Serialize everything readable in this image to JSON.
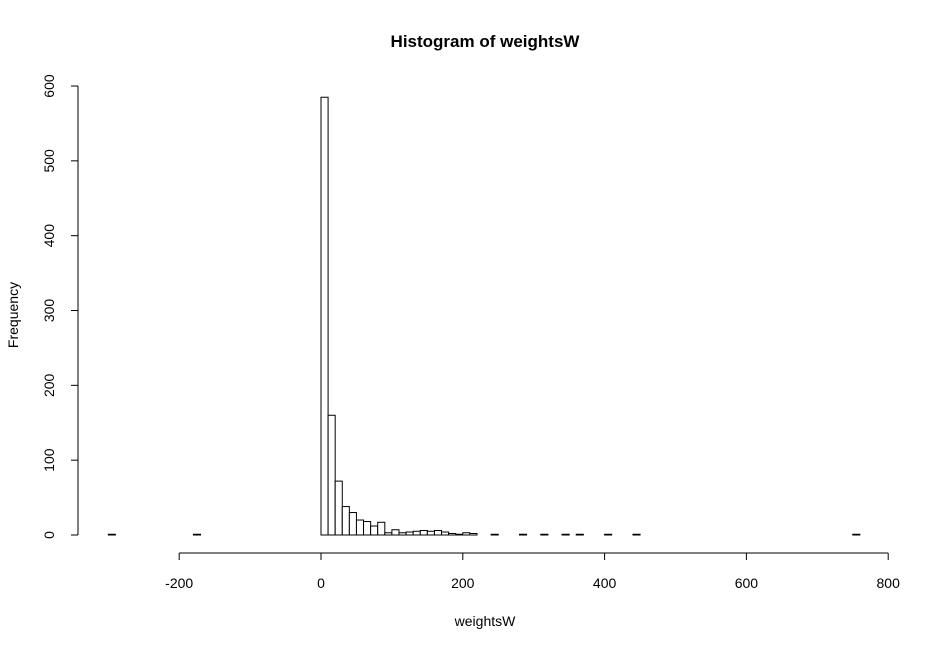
{
  "chart_data": {
    "type": "bar",
    "title": "Histogram of weightsW",
    "xlabel": "weightsW",
    "ylabel": "Frequency",
    "xlim": [
      -300,
      760
    ],
    "ylim": [
      0,
      600
    ],
    "x_ticks": [
      -200,
      0,
      200,
      400,
      600,
      800
    ],
    "y_ticks": [
      0,
      100,
      200,
      300,
      400,
      500,
      600
    ],
    "bin_width": 10,
    "grid": false,
    "bins": [
      {
        "x0": -300,
        "x1": -290,
        "count": 1
      },
      {
        "x0": -180,
        "x1": -170,
        "count": 1
      },
      {
        "x0": 0,
        "x1": 10,
        "count": 585
      },
      {
        "x0": 10,
        "x1": 20,
        "count": 160
      },
      {
        "x0": 20,
        "x1": 30,
        "count": 72
      },
      {
        "x0": 30,
        "x1": 40,
        "count": 38
      },
      {
        "x0": 40,
        "x1": 50,
        "count": 30
      },
      {
        "x0": 50,
        "x1": 60,
        "count": 20
      },
      {
        "x0": 60,
        "x1": 70,
        "count": 18
      },
      {
        "x0": 70,
        "x1": 80,
        "count": 12
      },
      {
        "x0": 80,
        "x1": 90,
        "count": 17
      },
      {
        "x0": 90,
        "x1": 100,
        "count": 3
      },
      {
        "x0": 100,
        "x1": 110,
        "count": 7
      },
      {
        "x0": 110,
        "x1": 120,
        "count": 3
      },
      {
        "x0": 120,
        "x1": 130,
        "count": 4
      },
      {
        "x0": 130,
        "x1": 140,
        "count": 5
      },
      {
        "x0": 140,
        "x1": 150,
        "count": 6
      },
      {
        "x0": 150,
        "x1": 160,
        "count": 5
      },
      {
        "x0": 160,
        "x1": 170,
        "count": 6
      },
      {
        "x0": 170,
        "x1": 180,
        "count": 4
      },
      {
        "x0": 180,
        "x1": 190,
        "count": 2
      },
      {
        "x0": 190,
        "x1": 200,
        "count": 1
      },
      {
        "x0": 200,
        "x1": 210,
        "count": 3
      },
      {
        "x0": 210,
        "x1": 220,
        "count": 2
      },
      {
        "x0": 240,
        "x1": 250,
        "count": 1
      },
      {
        "x0": 280,
        "x1": 290,
        "count": 1
      },
      {
        "x0": 310,
        "x1": 320,
        "count": 1
      },
      {
        "x0": 340,
        "x1": 350,
        "count": 1
      },
      {
        "x0": 360,
        "x1": 370,
        "count": 1
      },
      {
        "x0": 400,
        "x1": 410,
        "count": 1
      },
      {
        "x0": 440,
        "x1": 450,
        "count": 1
      },
      {
        "x0": 750,
        "x1": 760,
        "count": 1
      }
    ]
  }
}
